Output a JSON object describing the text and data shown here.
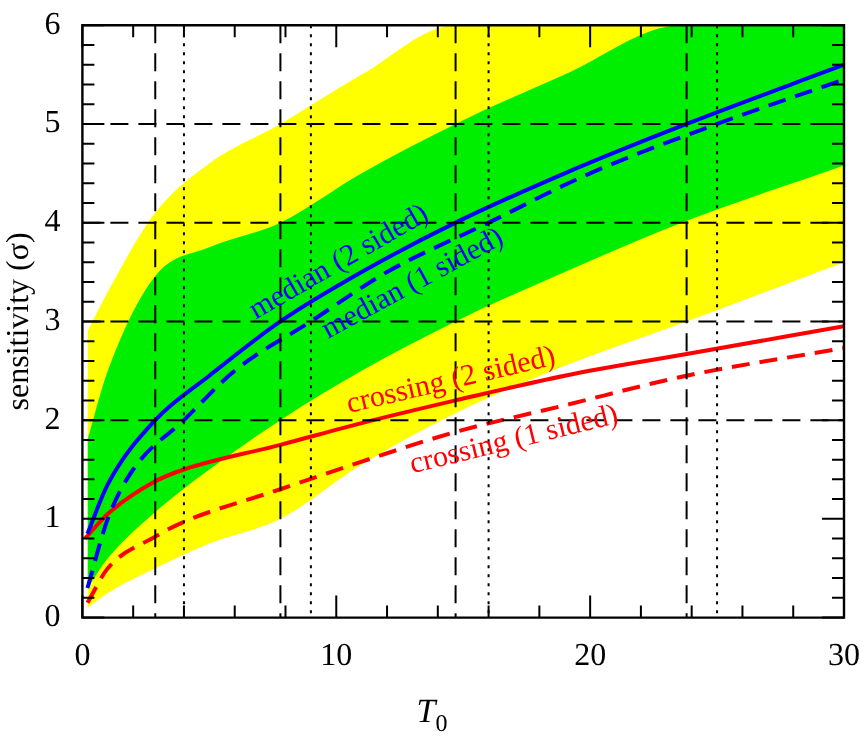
{
  "chart_data": {
    "type": "line",
    "xlabel": "T$_{0}$",
    "ylabel": "sensitivity (σ)",
    "xlim": [
      0,
      30
    ],
    "ylim": [
      0,
      6
    ],
    "xticks": [
      0,
      {
        "value": 2,
        "label": null
      },
      {
        "value": 4,
        "label": null
      },
      {
        "value": 6,
        "label": null
      },
      {
        "value": 8,
        "label": null
      },
      10,
      {
        "value": 12,
        "label": null
      },
      {
        "value": 14,
        "label": null
      },
      {
        "value": 16,
        "label": null
      },
      {
        "value": 18,
        "label": null
      },
      20,
      {
        "value": 22,
        "label": null
      },
      {
        "value": 24,
        "label": null
      },
      {
        "value": 26,
        "label": null
      },
      {
        "value": 28,
        "label": null
      },
      30
    ],
    "yticks": [
      0,
      {
        "value": 0.2,
        "label": null
      },
      {
        "value": 0.4,
        "label": null
      },
      {
        "value": 0.6,
        "label": null
      },
      {
        "value": 0.8,
        "label": null
      },
      1,
      {
        "value": 1.2,
        "label": null
      },
      {
        "value": 1.4,
        "label": null
      },
      {
        "value": 1.6,
        "label": null
      },
      {
        "value": 1.8,
        "label": null
      },
      2,
      {
        "value": 2.2,
        "label": null
      },
      {
        "value": 2.4,
        "label": null
      },
      {
        "value": 2.6,
        "label": null
      },
      {
        "value": 2.8,
        "label": null
      },
      3,
      {
        "value": 3.2,
        "label": null
      },
      {
        "value": 3.4,
        "label": null
      },
      {
        "value": 3.6,
        "label": null
      },
      {
        "value": 3.8,
        "label": null
      },
      4,
      {
        "value": 4.2,
        "label": null
      },
      {
        "value": 4.4,
        "label": null
      },
      {
        "value": 4.6,
        "label": null
      },
      {
        "value": 4.8,
        "label": null
      },
      5,
      {
        "value": 5.2,
        "label": null
      },
      {
        "value": 5.4,
        "label": null
      },
      {
        "value": 5.6,
        "label": null
      },
      {
        "value": 5.8,
        "label": null
      },
      6
    ],
    "grid": false,
    "legend": false,
    "marker": "none",
    "series": [
      {
        "type": "line",
        "color": "#ffff00",
        "x": [
          0.2,
          1,
          2.87,
          5,
          7.8,
          11,
          14.7,
          19,
          23.8,
          30
        ],
        "values": [
          null,
          null,
          null,
          null,
          null,
          null,
          null,
          null,
          null,
          null
        ],
        "upper": [
          2.9,
          3.3,
          4.1,
          4.6,
          5.0,
          5.5,
          6,
          6,
          6,
          6
        ],
        "lower": [
          0.1,
          0.25,
          0.5,
          0.75,
          1.0,
          1.55,
          2.07,
          2.55,
          3.0,
          3.6
        ]
      },
      {
        "type": "line",
        "color": "#00ee00",
        "x": [
          0.2,
          1,
          2.87,
          5,
          7.8,
          11,
          14.7,
          19,
          23.6,
          30
        ],
        "values": [
          null,
          null,
          null,
          null,
          null,
          null,
          null,
          null,
          null,
          null
        ],
        "upper": [
          1.8,
          2.5,
          3.46,
          3.75,
          4.0,
          4.5,
          5.0,
          5.5,
          6,
          6
        ],
        "lower": [
          0.3,
          0.6,
          1.07,
          1.5,
          2.0,
          2.5,
          3.0,
          3.5,
          4.0,
          4.58
        ]
      },
      {
        "type": "line",
        "name": "median (2 sided)",
        "color": "#0000ff",
        "line_style": "solid",
        "x": [
          0.2,
          1,
          2.87,
          5,
          7.8,
          11,
          14.7,
          19,
          23.8,
          30
        ],
        "values": [
          0.85,
          1.35,
          2,
          2.45,
          3,
          3.5,
          4,
          4.5,
          5,
          5.6
        ]
      },
      {
        "type": "line",
        "name": "median (1 sided)",
        "color": "#0000ff",
        "line_style": "dashed",
        "x": [
          0.2,
          1,
          2,
          4,
          6,
          9,
          12,
          16,
          20,
          25,
          30
        ],
        "values": [
          0.3,
          1.0,
          1.5,
          2,
          2.5,
          3,
          3.5,
          4,
          4.5,
          5,
          5.45
        ]
      },
      {
        "type": "line",
        "name": "crossing (2 sided)",
        "color": "#ff0000",
        "line_style": "solid",
        "x": [
          0.1,
          1,
          2.87,
          4,
          7.8,
          11,
          14.7,
          19,
          23.8,
          30
        ],
        "values": [
          0.8,
          1.05,
          1.38,
          1.5,
          1.75,
          1.97,
          2.2,
          2.45,
          2.67,
          2.95
        ]
      },
      {
        "type": "line",
        "name": "crossing (1 sided)",
        "color": "#ff0000",
        "line_style": "dashed",
        "x": [
          0.2,
          1,
          2.87,
          4,
          7.8,
          11,
          14.7,
          19,
          23.8,
          30
        ],
        "values": [
          0.15,
          0.5,
          0.82,
          0.97,
          1.3,
          1.58,
          1.88,
          2.15,
          2.45,
          2.73
        ]
      }
    ],
    "ref_lines": [
      {
        "axis": "y",
        "value": 2,
        "color": "#000000",
        "line_style": "dashed"
      },
      {
        "axis": "y",
        "value": 3,
        "color": "#000000",
        "line_style": "dashed"
      },
      {
        "axis": "y",
        "value": 4,
        "color": "#000000",
        "line_style": "dashed"
      },
      {
        "axis": "y",
        "value": 5,
        "color": "#000000",
        "line_style": "dashed"
      },
      {
        "axis": "x",
        "value": 2.87,
        "color": "#000000",
        "line_style": "dashed"
      },
      {
        "axis": "x",
        "value": 7.8,
        "color": "#000000",
        "line_style": "dashed"
      },
      {
        "axis": "x",
        "value": 14.7,
        "color": "#000000",
        "line_style": "dashed"
      },
      {
        "axis": "x",
        "value": 23.8,
        "color": "#000000",
        "line_style": "dashed"
      },
      {
        "axis": "x",
        "value": 4,
        "color": "#000000",
        "line_style": "dotted"
      },
      {
        "axis": "x",
        "value": 9,
        "color": "#000000",
        "line_style": "dotted"
      },
      {
        "axis": "x",
        "value": 16,
        "color": "#000000",
        "line_style": "dotted"
      },
      {
        "axis": "x",
        "value": 25,
        "color": "#000000",
        "line_style": "dotted"
      }
    ]
  }
}
